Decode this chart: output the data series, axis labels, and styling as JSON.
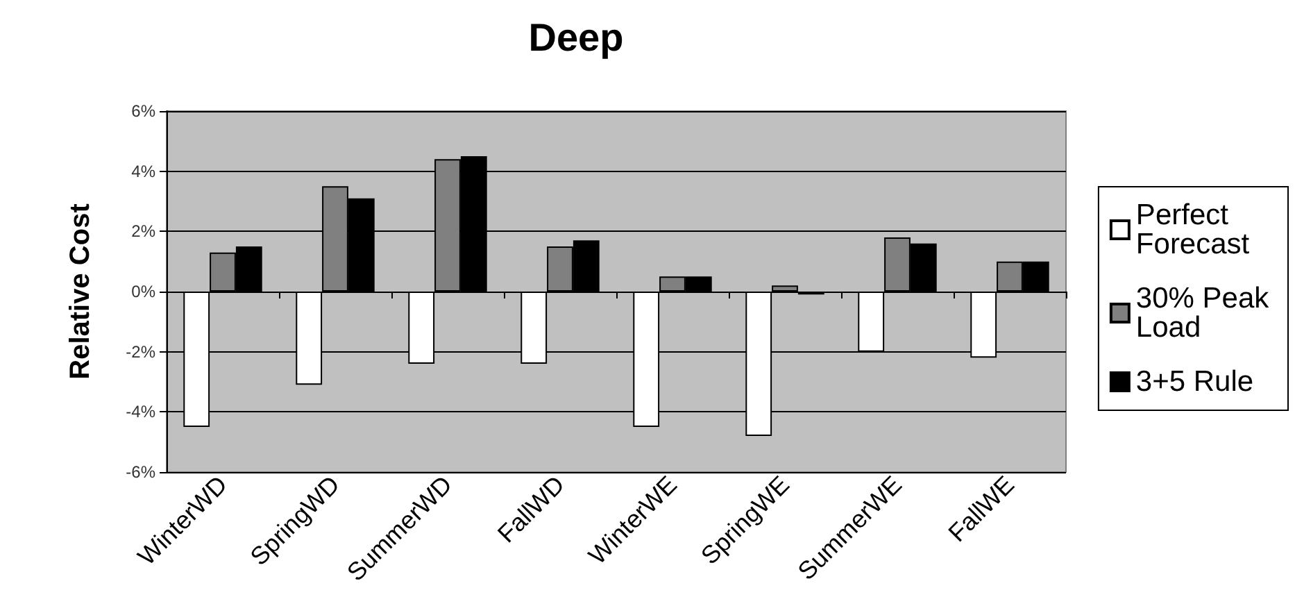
{
  "chart_data": {
    "type": "bar",
    "title": "Deep",
    "ylabel": "Relative Cost",
    "categories": [
      "WinterWD",
      "SpringWD",
      "SummerWD",
      "FallWD",
      "WinterWE",
      "SpringWE",
      "SummerWE",
      "FallWE"
    ],
    "series": [
      {
        "name": "Perfect Forecast",
        "color": "#ffffff",
        "values": [
          -4.5,
          -3.1,
          -2.4,
          -2.4,
          -4.5,
          -4.8,
          -2.0,
          -2.2
        ]
      },
      {
        "name": "30% Peak Load",
        "color": "#808080",
        "values": [
          1.3,
          3.5,
          4.4,
          1.5,
          0.5,
          0.2,
          1.8,
          1.0
        ]
      },
      {
        "name": "3+5 Rule",
        "color": "#000000",
        "values": [
          1.5,
          3.1,
          4.5,
          1.7,
          0.5,
          -0.1,
          1.6,
          1.0
        ]
      }
    ],
    "ylim": [
      -6,
      6
    ],
    "yticks": [
      {
        "value": -6,
        "label": "-6%"
      },
      {
        "value": -4,
        "label": "-4%"
      },
      {
        "value": -2,
        "label": "-2%"
      },
      {
        "value": 0,
        "label": "0%"
      },
      {
        "value": 2,
        "label": "2%"
      },
      {
        "value": 4,
        "label": "4%"
      },
      {
        "value": 6,
        "label": "6%"
      }
    ],
    "grid": "y",
    "legend": "right"
  }
}
